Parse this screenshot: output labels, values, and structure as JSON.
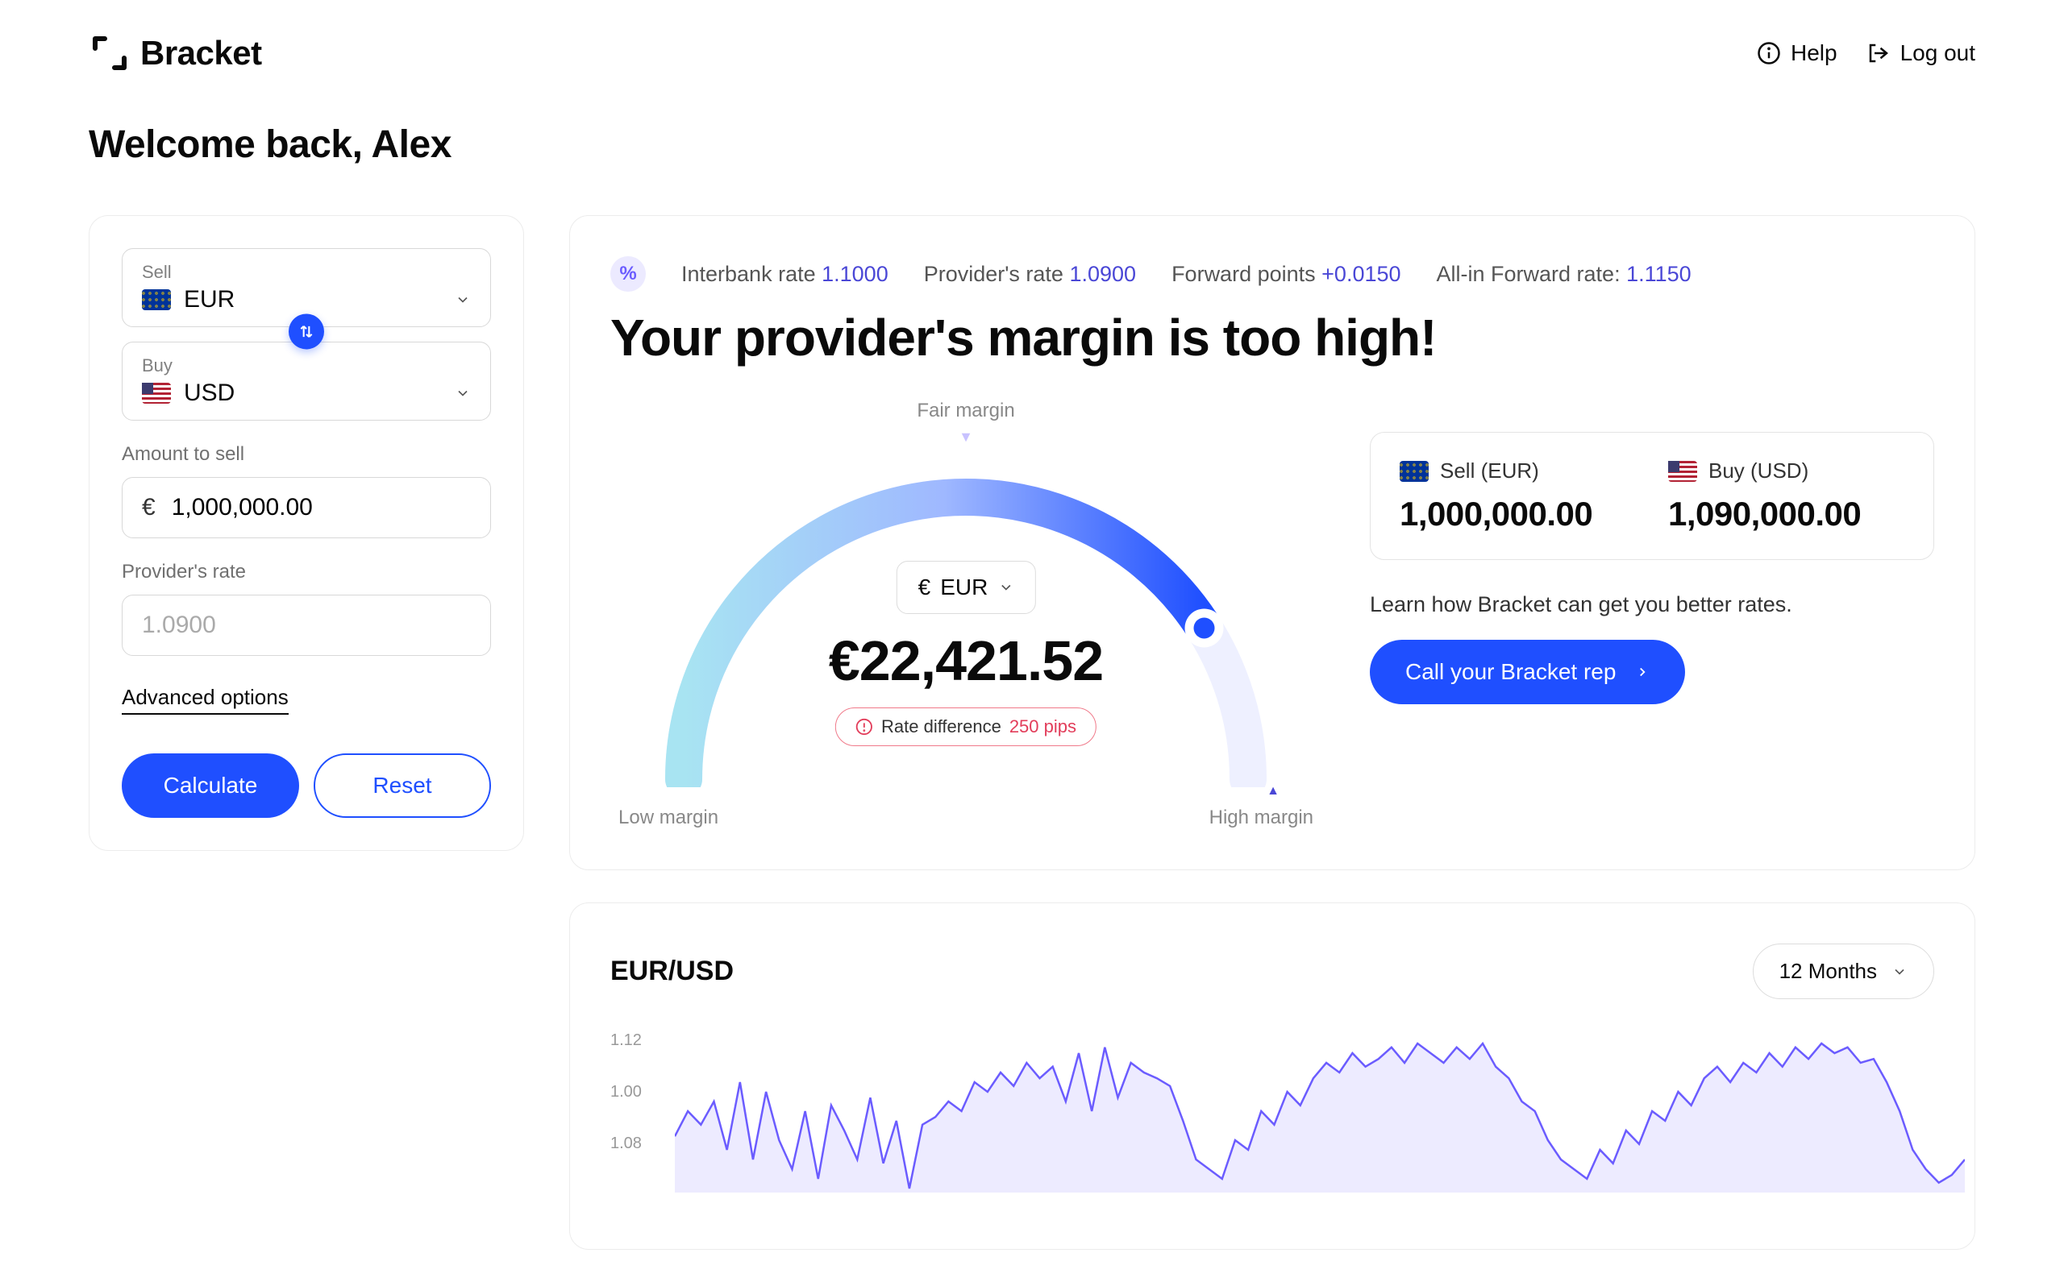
{
  "brand": "Bracket",
  "header": {
    "help": "Help",
    "logout": "Log out"
  },
  "welcome": "Welcome back, Alex",
  "form": {
    "sell_label": "Sell",
    "sell_currency": "EUR",
    "buy_label": "Buy",
    "buy_currency": "USD",
    "amount_label": "Amount to sell",
    "amount_symbol": "€",
    "amount_value": "1,000,000.00",
    "rate_label": "Provider's rate",
    "rate_value": "1.0900",
    "advanced": "Advanced options",
    "calculate": "Calculate",
    "reset": "Reset"
  },
  "rates": {
    "interbank_label": "Interbank rate",
    "interbank_value": "1.1000",
    "provider_label": "Provider's rate",
    "provider_value": "1.0900",
    "forward_label": "Forward points",
    "forward_value": "+0.0150",
    "allin_label": "All-in Forward rate:",
    "allin_value": "1.1150"
  },
  "headline": "Your provider's margin is too high!",
  "gauge": {
    "fair_label": "Fair margin",
    "low_label": "Low margin",
    "high_label": "High margin",
    "currency_symbol": "€",
    "currency_code": "EUR",
    "value": "€22,421.52",
    "pips_label": "Rate difference",
    "pips_value": "250 pips",
    "position_pct": 82,
    "colors": {
      "start": "#a8e4f2",
      "mid": "#9fb8ff",
      "end": "#1f4fff",
      "track": "#eef0ff"
    }
  },
  "sellbuy": {
    "sell_label": "Sell (EUR)",
    "sell_value": "1,000,000.00",
    "buy_label": "Buy (USD)",
    "buy_value": "1,090,000.00"
  },
  "learn": "Learn how Bracket can get you better rates.",
  "cta": "Call your Bracket rep",
  "chart": {
    "title": "EUR/USD",
    "range": "12 Months",
    "y_ticks": [
      "1.12",
      "1.00",
      "1.08"
    ],
    "line_color": "#6b5cff",
    "fill_color": "rgba(107,92,255,0.12)",
    "points": [
      42,
      55,
      48,
      60,
      35,
      70,
      30,
      65,
      40,
      25,
      55,
      20,
      58,
      45,
      30,
      62,
      28,
      50,
      15,
      48,
      52,
      60,
      55,
      70,
      65,
      75,
      68,
      80,
      72,
      78,
      60,
      85,
      55,
      88,
      62,
      80,
      75,
      72,
      68,
      50,
      30,
      25,
      20,
      40,
      35,
      55,
      48,
      65,
      58,
      72,
      80,
      75,
      85,
      78,
      82,
      88,
      80,
      90,
      85,
      80,
      88,
      82,
      90,
      78,
      72,
      60,
      55,
      40,
      30,
      25,
      20,
      35,
      28,
      45,
      38,
      55,
      50,
      65,
      58,
      72,
      78,
      70,
      80,
      75,
      85,
      78,
      88,
      82,
      90,
      85,
      88,
      80,
      82,
      70,
      55,
      35,
      25,
      18,
      22,
      30
    ]
  },
  "colors": {
    "primary": "#1f4fff",
    "accent": "#4a47d6"
  }
}
